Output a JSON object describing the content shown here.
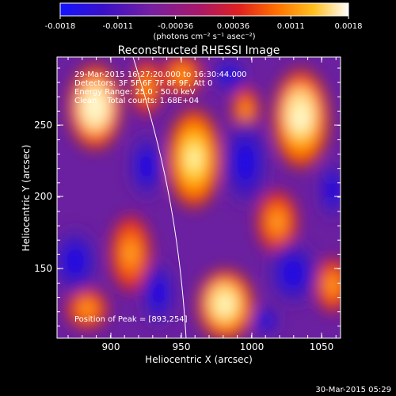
{
  "colorbar": {
    "ticks": [
      "-0.0018",
      "-0.0011",
      "-0.00036",
      "0.00036",
      "0.0011",
      "0.0018"
    ],
    "unit_label": "(photons cm⁻² s⁻¹ asec⁻²)",
    "colors": [
      "#0a14c8",
      "#3b14b0",
      "#6b2aa0",
      "#9a3a80",
      "#c8242c",
      "#ff5a00",
      "#ff9c00",
      "#ffd840",
      "#ffffff"
    ]
  },
  "plot": {
    "title": "Reconstructed RHESSI Image",
    "xlabel": "Heliocentric X (arcsec)",
    "ylabel": "Heliocentric Y (arcsec)",
    "xticks": [
      "900",
      "950",
      "1000",
      "1050"
    ],
    "yticks": [
      "250",
      "200",
      "150"
    ]
  },
  "info": {
    "line1": "29-Mar-2015 16:27:20.000 to 16:30:44.000",
    "line2": "Detectors: 3F 5F 6F 7F 8F 9F, Att 0",
    "line3": "Energy Range: 25.0 - 50.0 keV",
    "line4": "Clean    Total counts: 1.68E+04",
    "peak": "Position of Peak = [893,254]"
  },
  "footer": {
    "date": "30-Mar-2015 05:29"
  }
}
